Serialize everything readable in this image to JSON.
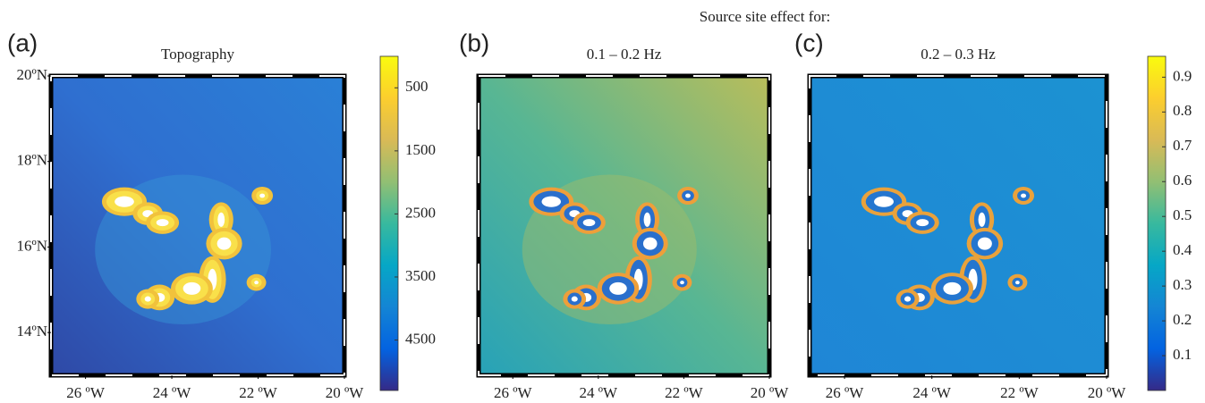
{
  "suptitle": "Source site effect for:",
  "map": {
    "xlim": [
      -26.8,
      -20
    ],
    "ylim": [
      13,
      20
    ]
  },
  "panels": [
    {
      "label": "(a)",
      "title": "Topography",
      "xticks": [
        {
          "value": -26,
          "label": "26 ºW"
        },
        {
          "value": -24,
          "label": "24 ºW"
        },
        {
          "value": -22,
          "label": "22 ºW"
        },
        {
          "value": -20,
          "label": "20 ºW"
        }
      ],
      "yticks": [
        {
          "value": 20,
          "label": "20ºN"
        },
        {
          "value": 18,
          "label": "18ºN"
        },
        {
          "value": 16,
          "label": "16ºN"
        },
        {
          "value": 14,
          "label": "14ºN"
        }
      ]
    },
    {
      "label": "(b)",
      "title": "0.1 – 0.2 Hz",
      "xticks": [
        {
          "value": -26,
          "label": "26 ºW"
        },
        {
          "value": -24,
          "label": "24 ºW"
        },
        {
          "value": -22,
          "label": "22 ºW"
        },
        {
          "value": -20,
          "label": "20 ºW"
        }
      ]
    },
    {
      "label": "(c)",
      "title": "0.2 – 0.3 Hz",
      "xticks": [
        {
          "value": -26,
          "label": "26 ºW"
        },
        {
          "value": -24,
          "label": "24 ºW"
        },
        {
          "value": -22,
          "label": "22 ºW"
        },
        {
          "value": -20,
          "label": "20 ºW"
        }
      ]
    }
  ],
  "colorbars": [
    {
      "lim": [
        0,
        5300
      ],
      "reversed": true,
      "ticks": [
        500,
        1500,
        2500,
        3500,
        4500
      ],
      "colors": [
        "#f9fb0e",
        "#fcce2e",
        "#d9ba56",
        "#92bf73",
        "#38b99e",
        "#06a7c6",
        "#1485d4",
        "#0363e1",
        "#352a87"
      ]
    },
    {
      "lim": [
        0,
        0.96
      ],
      "reversed": false,
      "ticks": [
        0.1,
        0.2,
        0.3,
        0.4,
        0.5,
        0.6,
        0.7,
        0.8,
        0.9
      ],
      "colors": [
        "#352a87",
        "#0363e1",
        "#1485d4",
        "#06a7c6",
        "#38b99e",
        "#92bf73",
        "#d9ba56",
        "#fcce2e",
        "#f9fb0e"
      ]
    }
  ]
}
